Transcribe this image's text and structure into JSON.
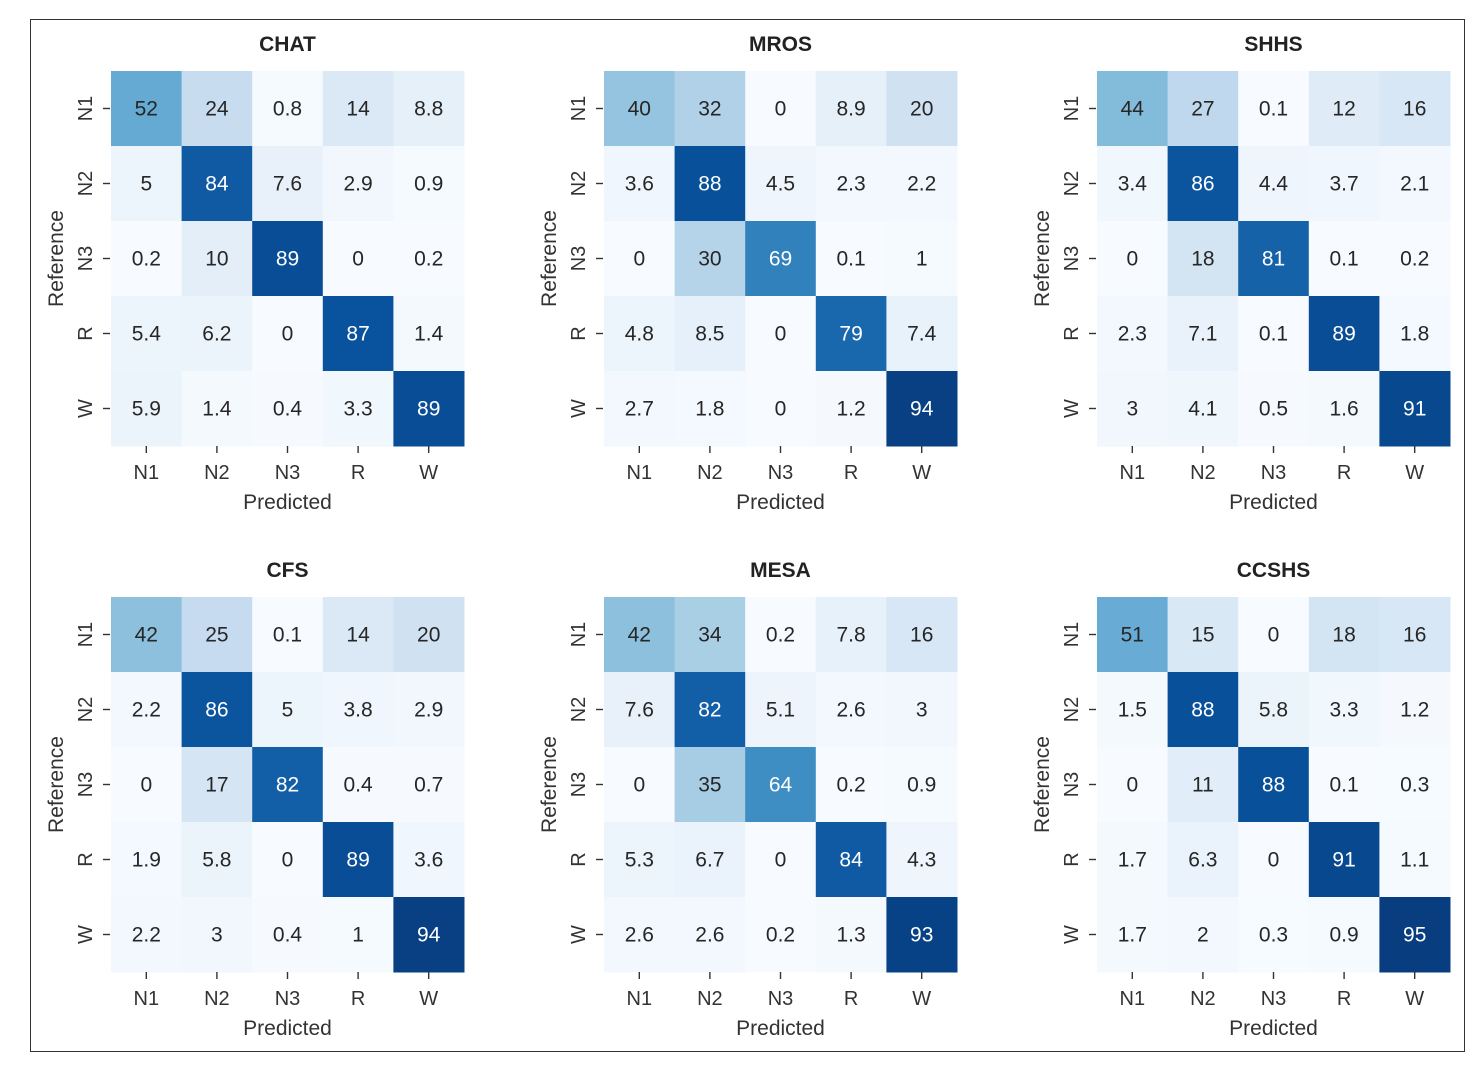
{
  "chart_data": [
    {
      "type": "heatmap",
      "title": "CHAT",
      "xlabel": "Predicted",
      "ylabel": "Reference",
      "x_categories": [
        "N1",
        "N2",
        "N3",
        "R",
        "W"
      ],
      "y_categories": [
        "N1",
        "N2",
        "N3",
        "R",
        "W"
      ],
      "values": [
        [
          52,
          24,
          0.8,
          14,
          8.8
        ],
        [
          5,
          84,
          7.6,
          2.9,
          0.9
        ],
        [
          0.2,
          10,
          89,
          0,
          0.2
        ],
        [
          5.4,
          6.2,
          0,
          87,
          1.4
        ],
        [
          5.9,
          1.4,
          0.4,
          3.3,
          89
        ]
      ],
      "labels": [
        [
          "52",
          "24",
          "0.8",
          "14",
          "8.8"
        ],
        [
          "5",
          "84",
          "7.6",
          "2.9",
          "0.9"
        ],
        [
          "0.2",
          "10",
          "89",
          "0",
          "0.2"
        ],
        [
          "5.4",
          "6.2",
          "0",
          "87",
          "1.4"
        ],
        [
          "5.9",
          "1.4",
          "0.4",
          "3.3",
          "89"
        ]
      ]
    },
    {
      "type": "heatmap",
      "title": "MROS",
      "xlabel": "Predicted",
      "ylabel": "Reference",
      "x_categories": [
        "N1",
        "N2",
        "N3",
        "R",
        "W"
      ],
      "y_categories": [
        "N1",
        "N2",
        "N3",
        "R",
        "W"
      ],
      "values": [
        [
          40,
          32,
          0,
          8.9,
          20
        ],
        [
          3.6,
          88,
          4.5,
          2.3,
          2.2
        ],
        [
          0,
          30,
          69,
          0.1,
          1
        ],
        [
          4.8,
          8.5,
          0,
          79,
          7.4
        ],
        [
          2.7,
          1.8,
          0,
          1.2,
          94
        ]
      ],
      "labels": [
        [
          "40",
          "32",
          "0",
          "8.9",
          "20"
        ],
        [
          "3.6",
          "88",
          "4.5",
          "2.3",
          "2.2"
        ],
        [
          "0",
          "30",
          "69",
          "0.1",
          "1"
        ],
        [
          "4.8",
          "8.5",
          "0",
          "79",
          "7.4"
        ],
        [
          "2.7",
          "1.8",
          "0",
          "1.2",
          "94"
        ]
      ]
    },
    {
      "type": "heatmap",
      "title": "SHHS",
      "xlabel": "Predicted",
      "ylabel": "Reference",
      "x_categories": [
        "N1",
        "N2",
        "N3",
        "R",
        "W"
      ],
      "y_categories": [
        "N1",
        "N2",
        "N3",
        "R",
        "W"
      ],
      "values": [
        [
          44,
          27,
          0.1,
          12,
          16
        ],
        [
          3.4,
          86,
          4.4,
          3.7,
          2.1
        ],
        [
          0,
          18,
          81,
          0.1,
          0.2
        ],
        [
          2.3,
          7.1,
          0.1,
          89,
          1.8
        ],
        [
          3,
          4.1,
          0.5,
          1.6,
          91
        ]
      ],
      "labels": [
        [
          "44",
          "27",
          "0.1",
          "12",
          "16"
        ],
        [
          "3.4",
          "86",
          "4.4",
          "3.7",
          "2.1"
        ],
        [
          "0",
          "18",
          "81",
          "0.1",
          "0.2"
        ],
        [
          "2.3",
          "7.1",
          "0.1",
          "89",
          "1.8"
        ],
        [
          "3",
          "4.1",
          "0.5",
          "1.6",
          "91"
        ]
      ]
    },
    {
      "type": "heatmap",
      "title": "CFS",
      "xlabel": "Predicted",
      "ylabel": "Reference",
      "x_categories": [
        "N1",
        "N2",
        "N3",
        "R",
        "W"
      ],
      "y_categories": [
        "N1",
        "N2",
        "N3",
        "R",
        "W"
      ],
      "values": [
        [
          42,
          25,
          0.1,
          14,
          20
        ],
        [
          2.2,
          86,
          5,
          3.8,
          2.9
        ],
        [
          0,
          17,
          82,
          0.4,
          0.7
        ],
        [
          1.9,
          5.8,
          0,
          89,
          3.6
        ],
        [
          2.2,
          3,
          0.4,
          1,
          94
        ]
      ],
      "labels": [
        [
          "42",
          "25",
          "0.1",
          "14",
          "20"
        ],
        [
          "2.2",
          "86",
          "5",
          "3.8",
          "2.9"
        ],
        [
          "0",
          "17",
          "82",
          "0.4",
          "0.7"
        ],
        [
          "1.9",
          "5.8",
          "0",
          "89",
          "3.6"
        ],
        [
          "2.2",
          "3",
          "0.4",
          "1",
          "94"
        ]
      ]
    },
    {
      "type": "heatmap",
      "title": "MESA",
      "xlabel": "Predicted",
      "ylabel": "Reference",
      "x_categories": [
        "N1",
        "N2",
        "N3",
        "R",
        "W"
      ],
      "y_categories": [
        "N1",
        "N2",
        "N3",
        "R",
        "W"
      ],
      "values": [
        [
          42,
          34,
          0.2,
          7.8,
          16
        ],
        [
          7.6,
          82,
          5.1,
          2.6,
          3
        ],
        [
          0,
          35,
          64,
          0.2,
          0.9
        ],
        [
          5.3,
          6.7,
          0,
          84,
          4.3
        ],
        [
          2.6,
          2.6,
          0.2,
          1.3,
          93
        ]
      ],
      "labels": [
        [
          "42",
          "34",
          "0.2",
          "7.8",
          "16"
        ],
        [
          "7.6",
          "82",
          "5.1",
          "2.6",
          "3"
        ],
        [
          "0",
          "35",
          "64",
          "0.2",
          "0.9"
        ],
        [
          "5.3",
          "6.7",
          "0",
          "84",
          "4.3"
        ],
        [
          "2.6",
          "2.6",
          "0.2",
          "1.3",
          "93"
        ]
      ]
    },
    {
      "type": "heatmap",
      "title": "CCSHS",
      "xlabel": "Predicted",
      "ylabel": "Reference",
      "x_categories": [
        "N1",
        "N2",
        "N3",
        "R",
        "W"
      ],
      "y_categories": [
        "N1",
        "N2",
        "N3",
        "R",
        "W"
      ],
      "values": [
        [
          51,
          15,
          0,
          18,
          16
        ],
        [
          1.5,
          88,
          5.8,
          3.3,
          1.2
        ],
        [
          0,
          11,
          88,
          0.1,
          0.3
        ],
        [
          1.7,
          6.3,
          0,
          91,
          1.1
        ],
        [
          1.7,
          2,
          0.3,
          0.9,
          95
        ]
      ],
      "labels": [
        [
          "51",
          "15",
          "0",
          "18",
          "16"
        ],
        [
          "1.5",
          "88",
          "5.8",
          "3.3",
          "1.2"
        ],
        [
          "0",
          "11",
          "88",
          "0.1",
          "0.3"
        ],
        [
          "1.7",
          "6.3",
          "0",
          "91",
          "1.1"
        ],
        [
          "1.7",
          "2",
          "0.3",
          "0.9",
          "95"
        ]
      ]
    }
  ],
  "colorscale": {
    "name": "Blues",
    "stops": [
      "#f7fbff",
      "#deebf7",
      "#c6dbef",
      "#9ecae1",
      "#6baed6",
      "#4292c6",
      "#2171b5",
      "#08519c",
      "#08306b"
    ],
    "vmin": 0,
    "vmax": 100,
    "dark_text": "#262626",
    "light_text": "#ffffff"
  },
  "frame_color": "#333333"
}
